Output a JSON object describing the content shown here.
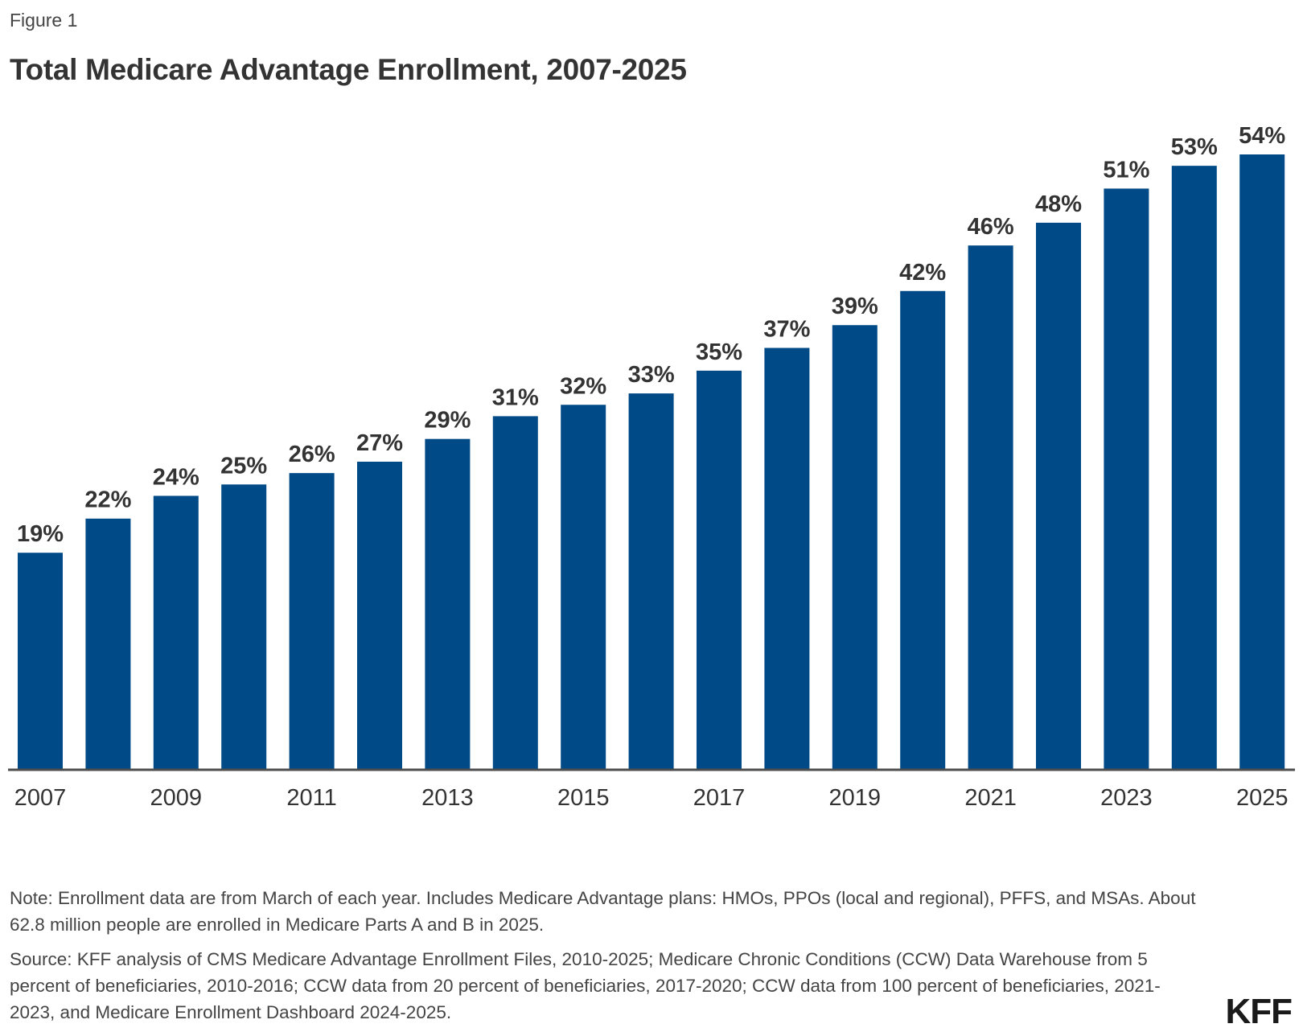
{
  "figure_label": "Figure 1",
  "title": "Total Medicare Advantage Enrollment, 2007-2025",
  "note": "Note: Enrollment data are from March of each year. Includes Medicare Advantage plans: HMOs, PPOs (local and regional), PFFS, and MSAs. About 62.8 million people are enrolled in Medicare Parts A and B in 2025.",
  "source": "Source: KFF analysis of CMS Medicare Advantage Enrollment Files, 2010-2025; Medicare Chronic Conditions (CCW) Data Warehouse from 5 percent of beneficiaries, 2010-2016; CCW data from 20 percent of beneficiaries, 2017-2020; CCW data from 100 percent of beneficiaries, 2021-2023, and Medicare Enrollment Dashboard 2024-2025.",
  "logo": "KFF",
  "colors": {
    "bar": "#004a87",
    "axis": "#4d4d4d",
    "text": "#333333"
  },
  "chart_data": {
    "type": "bar",
    "title": "Total Medicare Advantage Enrollment, 2007-2025",
    "xlabel": "",
    "ylabel": "",
    "categories": [
      "2007",
      "2008",
      "2009",
      "2010",
      "2011",
      "2012",
      "2013",
      "2014",
      "2015",
      "2016",
      "2017",
      "2018",
      "2019",
      "2020",
      "2021",
      "2022",
      "2023",
      "2024",
      "2025"
    ],
    "values": [
      19,
      22,
      24,
      25,
      26,
      27,
      29,
      31,
      32,
      33,
      35,
      37,
      39,
      42,
      46,
      48,
      51,
      53,
      54
    ],
    "value_labels": [
      "19%",
      "22%",
      "24%",
      "25%",
      "26%",
      "27%",
      "29%",
      "31%",
      "32%",
      "33%",
      "35%",
      "37%",
      "39%",
      "42%",
      "46%",
      "48%",
      "51%",
      "53%",
      "54%"
    ],
    "tick_labels": [
      "2007",
      "",
      "2009",
      "",
      "2011",
      "",
      "2013",
      "",
      "2015",
      "",
      "2017",
      "",
      "2019",
      "",
      "2021",
      "",
      "2023",
      "",
      "2025"
    ],
    "ylim": [
      0,
      54
    ],
    "unit": "%",
    "grid": false,
    "legend": "none"
  }
}
